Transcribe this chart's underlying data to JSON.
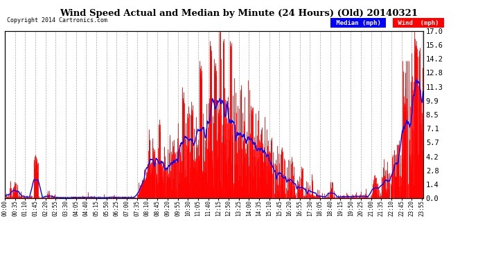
{
  "title": "Wind Speed Actual and Median by Minute (24 Hours) (Old) 20140321",
  "copyright": "Copyright 2014 Cartronics.com",
  "ylabel_right": [
    "0.0",
    "1.4",
    "2.8",
    "4.2",
    "5.7",
    "7.1",
    "8.5",
    "9.9",
    "11.3",
    "12.8",
    "14.2",
    "15.6",
    "17.0"
  ],
  "yticks": [
    0.0,
    1.4,
    2.8,
    4.2,
    5.7,
    7.1,
    8.5,
    9.9,
    11.3,
    12.8,
    14.2,
    15.6,
    17.0
  ],
  "ymax": 17.0,
  "ymin": 0.0,
  "wind_color": "#ff0000",
  "median_color": "#0000ff",
  "bg_color": "#ffffff",
  "grid_color": "#aaaaaa",
  "legend_median_bg": "#0000ff",
  "legend_wind_bg": "#ff0000",
  "total_minutes": 1440,
  "x_tick_step": 35,
  "x_tick_labels": [
    "00:00",
    "00:35",
    "01:10",
    "01:45",
    "02:20",
    "02:55",
    "03:30",
    "04:05",
    "04:40",
    "05:15",
    "05:50",
    "06:25",
    "07:00",
    "07:35",
    "08:10",
    "08:45",
    "09:20",
    "09:55",
    "10:30",
    "11:05",
    "11:40",
    "12:15",
    "12:50",
    "13:25",
    "14:00",
    "14:35",
    "15:10",
    "15:45",
    "16:20",
    "16:55",
    "17:30",
    "18:05",
    "18:40",
    "19:15",
    "19:50",
    "20:25",
    "21:00",
    "21:35",
    "22:10",
    "22:45",
    "23:20",
    "23:55"
  ]
}
